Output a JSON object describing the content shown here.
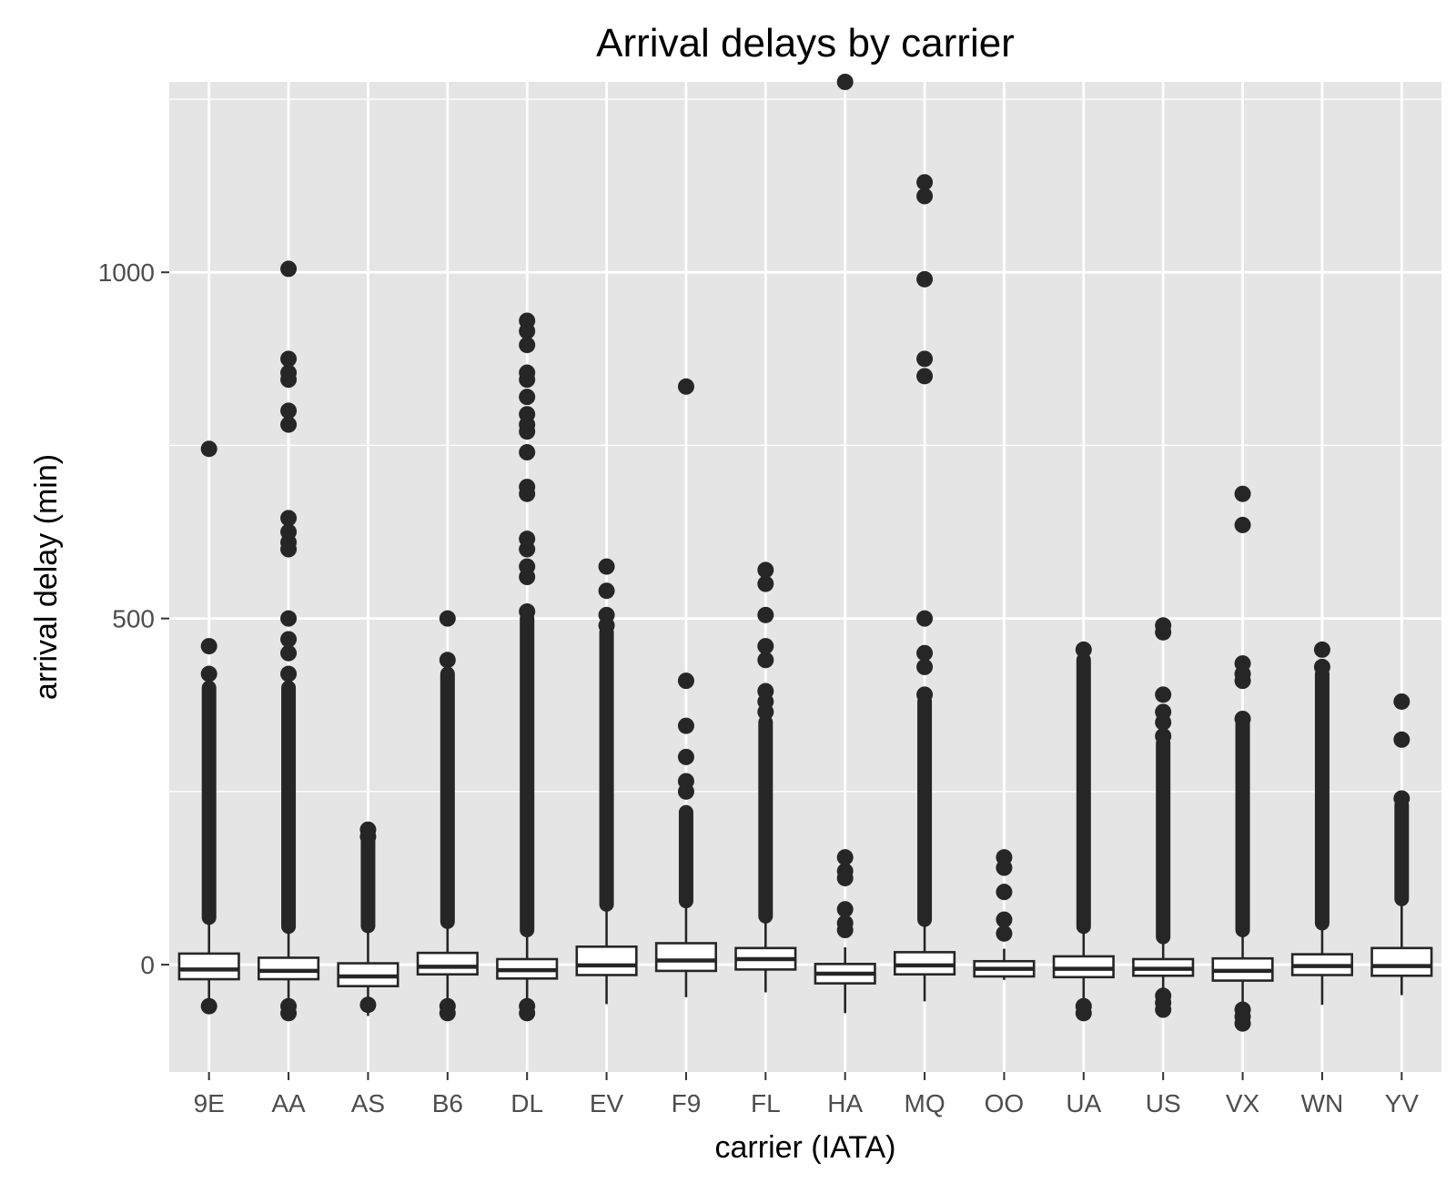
{
  "chart_data": {
    "type": "boxplot",
    "title": "Arrival delays by carrier",
    "xlabel": "carrier (IATA)",
    "ylabel": "arrival delay (min)",
    "ylim": [
      -155,
      1275
    ],
    "yticks": [
      0,
      500,
      1000
    ],
    "grid": true,
    "legend": "none",
    "colors": {
      "panel": "#e5e5e5",
      "grid": "#ffffff",
      "box_fill": "#ffffff",
      "box_stroke": "#262626",
      "outlier": "#262626",
      "tick_text": "#4d4d4d",
      "title_text": "#000000"
    },
    "categories": [
      "9E",
      "AA",
      "AS",
      "B6",
      "DL",
      "EV",
      "F9",
      "FL",
      "HA",
      "MQ",
      "OO",
      "UA",
      "US",
      "VX",
      "WN",
      "YV"
    ],
    "boxes": [
      {
        "carrier": "9E",
        "whisker_low": -68,
        "q1": -21,
        "median": -7,
        "q3": 16,
        "whisker_high": 68,
        "dense_outliers": [
          68,
          400
        ]
      },
      {
        "carrier": "AA",
        "whisker_low": -75,
        "q1": -21,
        "median": -9,
        "q3": 10,
        "whisker_high": 55,
        "dense_outliers": [
          55,
          400
        ]
      },
      {
        "carrier": "AS",
        "whisker_low": -74,
        "q1": -31,
        "median": -17,
        "q3": 2,
        "whisker_high": 56,
        "dense_outliers": [
          56,
          195
        ]
      },
      {
        "carrier": "B6",
        "whisker_low": -75,
        "q1": -14,
        "median": -3,
        "q3": 17,
        "whisker_high": 62,
        "dense_outliers": [
          62,
          420
        ]
      },
      {
        "carrier": "DL",
        "whisker_low": -75,
        "q1": -20,
        "median": -8,
        "q3": 8,
        "whisker_high": 50,
        "dense_outliers": [
          50,
          500
        ]
      },
      {
        "carrier": "EV",
        "whisker_low": -57,
        "q1": -15,
        "median": -1,
        "q3": 26,
        "whisker_high": 87,
        "dense_outliers": [
          87,
          480
        ]
      },
      {
        "carrier": "F9",
        "whisker_low": -47,
        "q1": -9,
        "median": 6,
        "q3": 31,
        "whisker_high": 92,
        "dense_outliers": [
          92,
          220
        ]
      },
      {
        "carrier": "FL",
        "whisker_low": -40,
        "q1": -7,
        "median": 8,
        "q3": 24,
        "whisker_high": 70,
        "dense_outliers": [
          70,
          350
        ]
      },
      {
        "carrier": "HA",
        "whisker_low": -70,
        "q1": -27,
        "median": -13,
        "q3": 1,
        "whisker_high": 25,
        "dense_outliers": []
      },
      {
        "carrier": "MQ",
        "whisker_low": -53,
        "q1": -14,
        "median": -1,
        "q3": 18,
        "whisker_high": 65,
        "dense_outliers": [
          65,
          380
        ]
      },
      {
        "carrier": "OO",
        "whisker_low": -22,
        "q1": -17,
        "median": -6,
        "q3": 5,
        "whisker_high": 23,
        "dense_outliers": []
      },
      {
        "carrier": "UA",
        "whisker_low": -75,
        "q1": -18,
        "median": -6,
        "q3": 12,
        "whisker_high": 55,
        "dense_outliers": [
          55,
          440
        ]
      },
      {
        "carrier": "US",
        "whisker_low": -75,
        "q1": -16,
        "median": -6,
        "q3": 8,
        "whisker_high": 40,
        "dense_outliers": [
          40,
          320
        ]
      },
      {
        "carrier": "VX",
        "whisker_low": -75,
        "q1": -23,
        "median": -9,
        "q3": 9,
        "whisker_high": 50,
        "dense_outliers": [
          50,
          350
        ]
      },
      {
        "carrier": "WN",
        "whisker_low": -58,
        "q1": -15,
        "median": -2,
        "q3": 15,
        "whisker_high": 60,
        "dense_outliers": [
          60,
          420
        ]
      },
      {
        "carrier": "YV",
        "whisker_low": -44,
        "q1": -16,
        "median": -2,
        "q3": 24,
        "whisker_high": 95,
        "dense_outliers": [
          95,
          230
        ]
      }
    ],
    "outliers": {
      "9E": [
        -60,
        420,
        460,
        745
      ],
      "AA": [
        -70,
        -60,
        420,
        450,
        470,
        500,
        600,
        610,
        625,
        645,
        780,
        800,
        845,
        855,
        875,
        1005
      ],
      "AS": [
        -58,
        185,
        195
      ],
      "B6": [
        -70,
        -60,
        440,
        500
      ],
      "DL": [
        -70,
        -60,
        510,
        560,
        575,
        600,
        615,
        680,
        690,
        740,
        770,
        780,
        795,
        820,
        845,
        855,
        895,
        915,
        930
      ],
      "EV": [
        490,
        505,
        540,
        575
      ],
      "F9": [
        250,
        265,
        300,
        345,
        410,
        835
      ],
      "FL": [
        365,
        380,
        395,
        440,
        460,
        505,
        550,
        570
      ],
      "HA": [
        50,
        60,
        80,
        125,
        135,
        155,
        1275
      ],
      "MQ": [
        390,
        430,
        450,
        500,
        850,
        875,
        990,
        1110,
        1130
      ],
      "OO": [
        45,
        65,
        105,
        140,
        155
      ],
      "UA": [
        -70,
        -60,
        455
      ],
      "US": [
        -65,
        -55,
        -45,
        330,
        350,
        365,
        390,
        480,
        490
      ],
      "VX": [
        -85,
        -75,
        -65,
        355,
        410,
        420,
        435,
        635,
        680
      ],
      "WN": [
        430,
        455
      ],
      "YV": [
        240,
        325,
        380
      ]
    }
  }
}
